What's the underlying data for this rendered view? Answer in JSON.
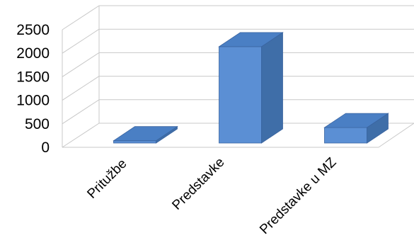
{
  "chart_data": {
    "type": "bar",
    "categories": [
      "Pritužbe",
      "Predstavke",
      "Predstavke u MZ"
    ],
    "values": [
      20,
      2050,
      330
    ],
    "ylim": [
      0,
      2500
    ],
    "yticks": [
      0,
      500,
      1000,
      1500,
      2000,
      2500
    ],
    "grid": true,
    "legend": "none",
    "three_d": true,
    "colors": {
      "bar_front": "#5b8fd4",
      "bar_side": "#3f6ea8",
      "bar_top": "#4a7fc4",
      "bar_edge": "#3a64a0",
      "gridline": "#c8c8c8"
    }
  }
}
